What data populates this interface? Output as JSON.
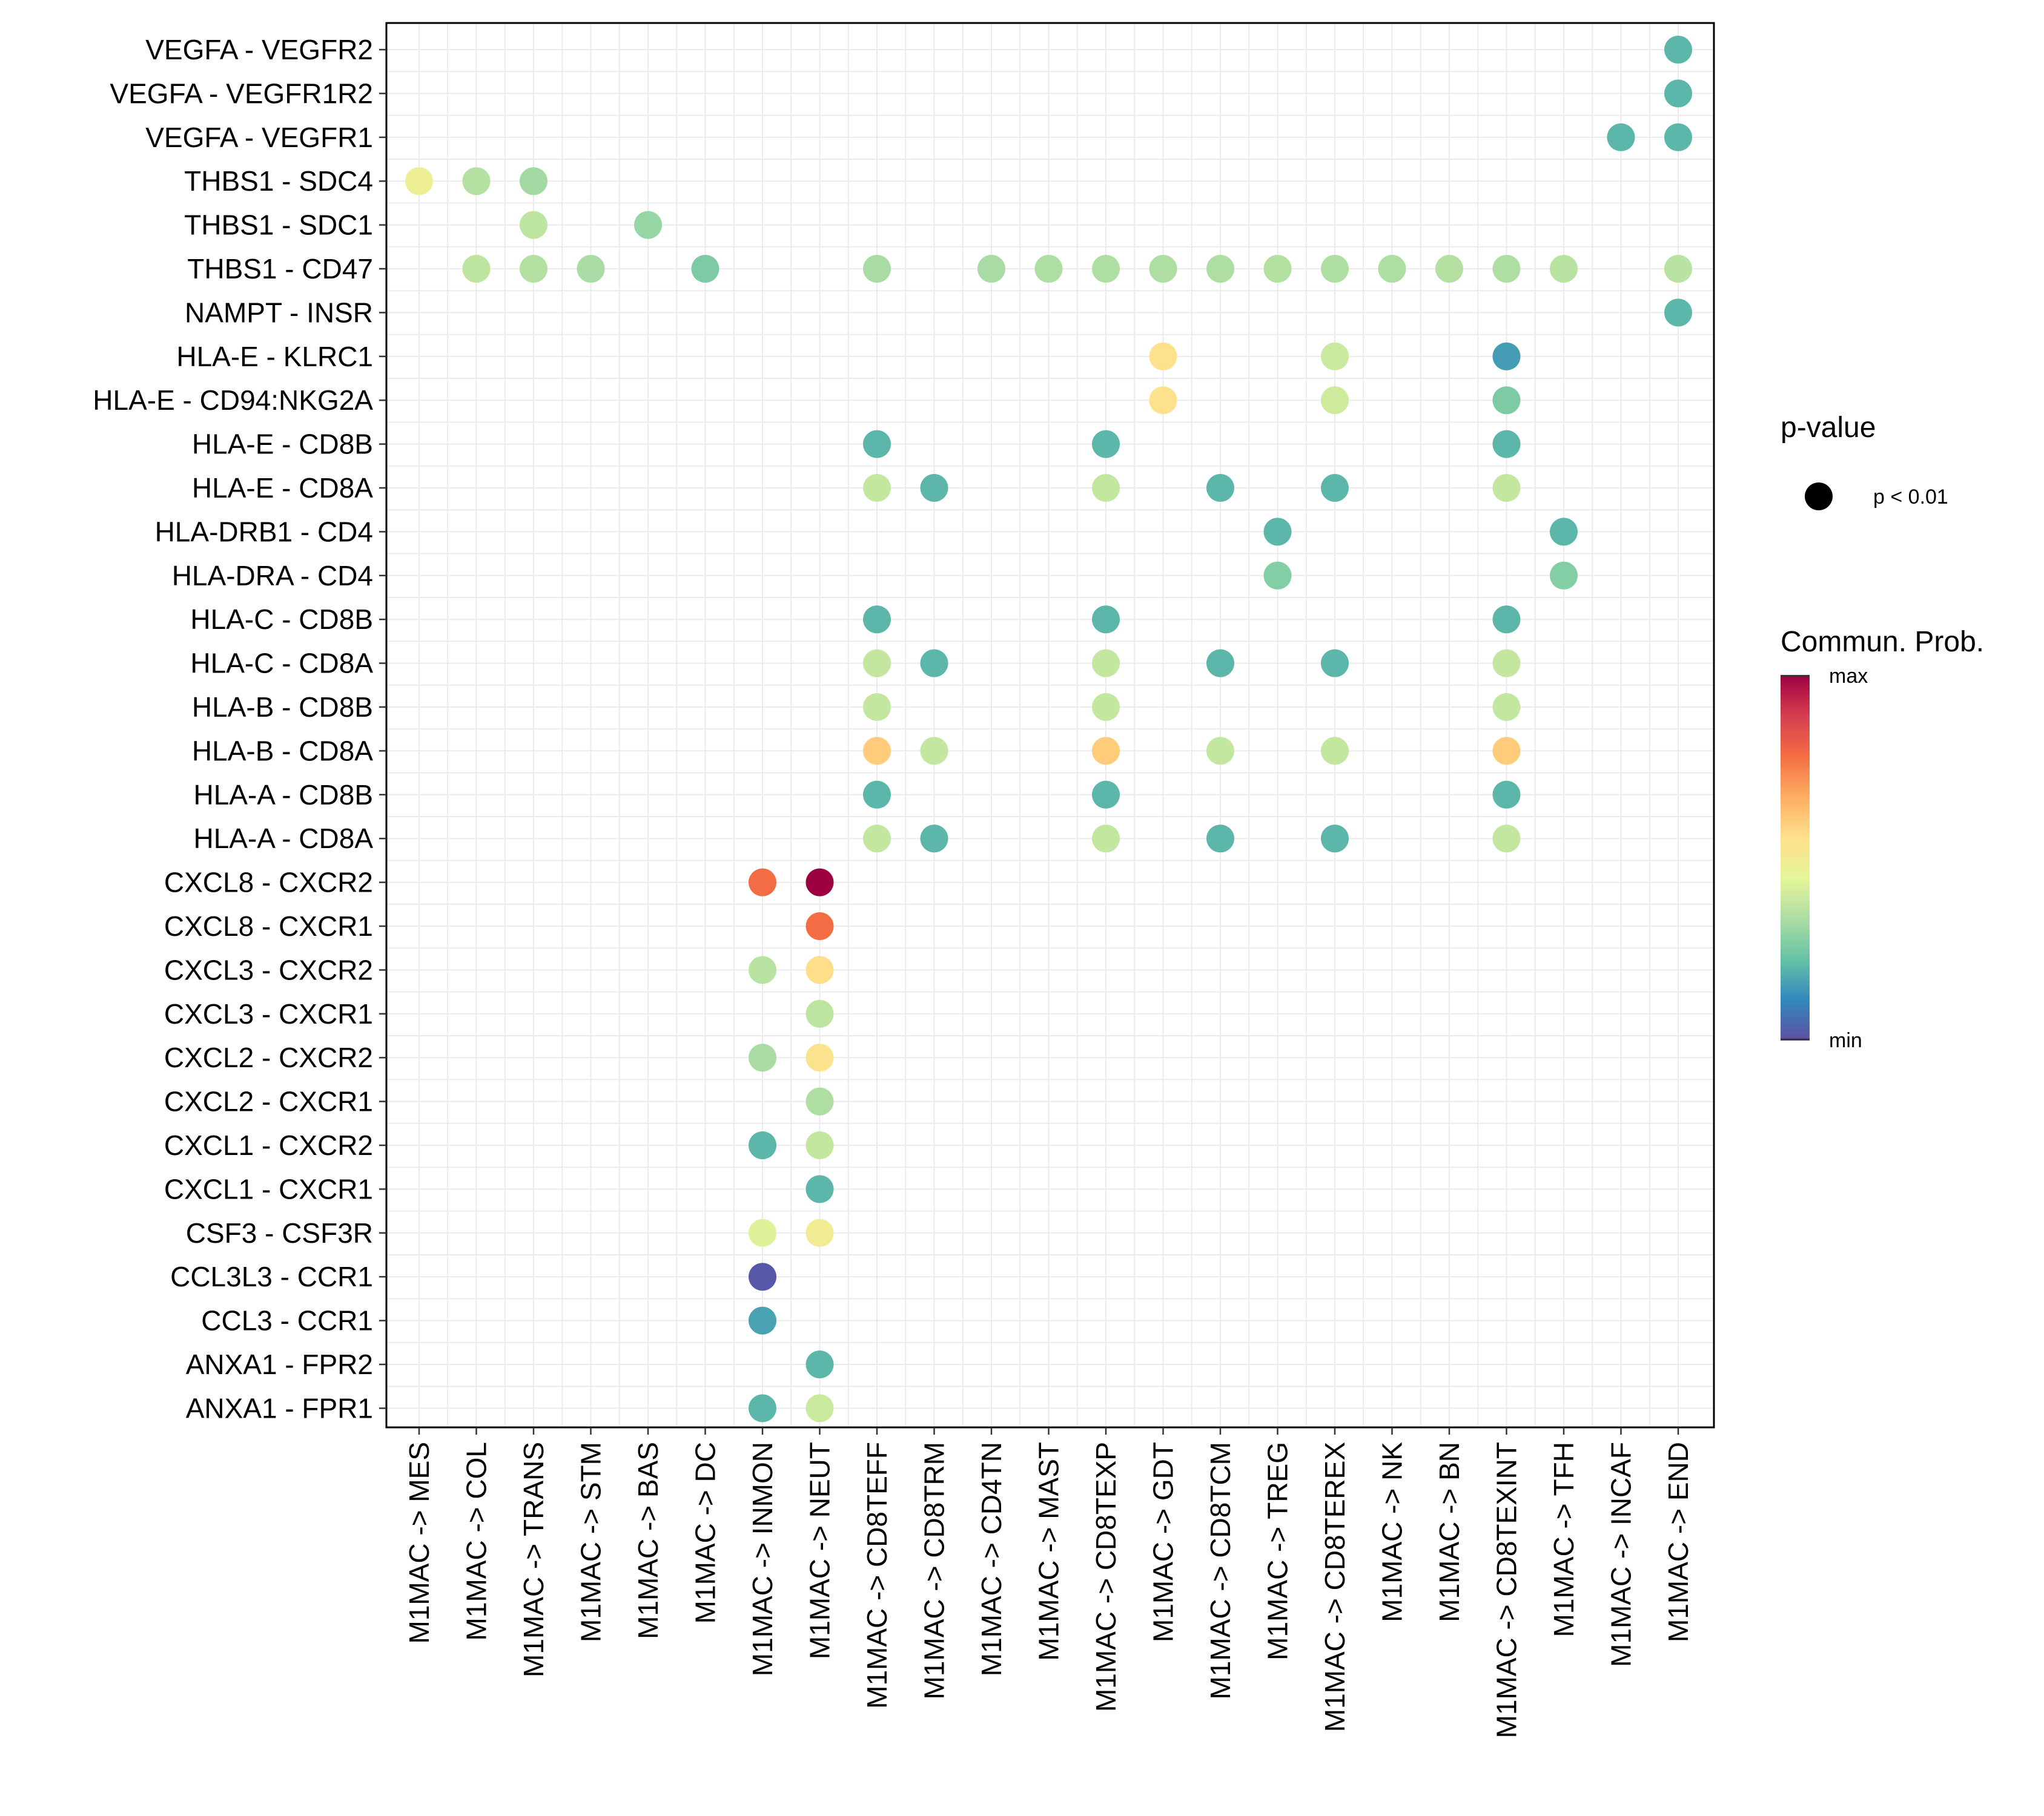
{
  "chart_data": {
    "type": "scatter",
    "subtype": "dot-plot",
    "x_categories": [
      "M1MAC -> MES",
      "M1MAC -> COL",
      "M1MAC -> TRANS",
      "M1MAC -> STM",
      "M1MAC -> BAS",
      "M1MAC -> DC",
      "M1MAC -> INMON",
      "M1MAC -> NEUT",
      "M1MAC -> CD8TEFF",
      "M1MAC -> CD8TRM",
      "M1MAC -> CD4TN",
      "M1MAC -> MAST",
      "M1MAC -> CD8TEXP",
      "M1MAC -> GDT",
      "M1MAC -> CD8TCM",
      "M1MAC -> TREG",
      "M1MAC -> CD8TEREX",
      "M1MAC -> NK",
      "M1MAC -> BN",
      "M1MAC -> CD8TEXINT",
      "M1MAC -> TFH",
      "M1MAC -> INCAF",
      "M1MAC -> END"
    ],
    "y_categories": [
      "VEGFA - VEGFR2",
      "VEGFA - VEGFR1R2",
      "VEGFA - VEGFR1",
      "THBS1 - SDC4",
      "THBS1 - SDC1",
      "THBS1 - CD47",
      "NAMPT - INSR",
      "HLA-E - KLRC1",
      "HLA-E - CD94:NKG2A",
      "HLA-E - CD8B",
      "HLA-E - CD8A",
      "HLA-DRB1 - CD4",
      "HLA-DRA - CD4",
      "HLA-C - CD8B",
      "HLA-C - CD8A",
      "HLA-B - CD8B",
      "HLA-B - CD8A",
      "HLA-A - CD8B",
      "HLA-A - CD8A",
      "CXCL8 - CXCR2",
      "CXCL8 - CXCR1",
      "CXCL3 - CXCR2",
      "CXCL3 - CXCR1",
      "CXCL2 - CXCR2",
      "CXCL2 - CXCR1",
      "CXCL1 - CXCR2",
      "CXCL1 - CXCR1",
      "CSF3 - CSF3R",
      "CCL3L3 - CCR1",
      "CCL3 - CCR1",
      "ANXA1 - FPR2",
      "ANXA1 - FPR1"
    ],
    "points": [
      {
        "x": "M1MAC -> END",
        "y": "VEGFA - VEGFR2",
        "prob": 0.2
      },
      {
        "x": "M1MAC -> END",
        "y": "VEGFA - VEGFR1R2",
        "prob": 0.2
      },
      {
        "x": "M1MAC -> INCAF",
        "y": "VEGFA - VEGFR1",
        "prob": 0.2
      },
      {
        "x": "M1MAC -> END",
        "y": "VEGFA - VEGFR1",
        "prob": 0.2
      },
      {
        "x": "M1MAC -> MES",
        "y": "THBS1 - SDC4",
        "prob": 0.48
      },
      {
        "x": "M1MAC -> COL",
        "y": "THBS1 - SDC4",
        "prob": 0.35
      },
      {
        "x": "M1MAC -> TRANS",
        "y": "THBS1 - SDC4",
        "prob": 0.32
      },
      {
        "x": "M1MAC -> TRANS",
        "y": "THBS1 - SDC1",
        "prob": 0.37
      },
      {
        "x": "M1MAC -> BAS",
        "y": "THBS1 - SDC1",
        "prob": 0.3
      },
      {
        "x": "M1MAC -> COL",
        "y": "THBS1 - CD47",
        "prob": 0.37
      },
      {
        "x": "M1MAC -> TRANS",
        "y": "THBS1 - CD47",
        "prob": 0.35
      },
      {
        "x": "M1MAC -> STM",
        "y": "THBS1 - CD47",
        "prob": 0.33
      },
      {
        "x": "M1MAC -> DC",
        "y": "THBS1 - CD47",
        "prob": 0.26
      },
      {
        "x": "M1MAC -> CD8TEFF",
        "y": "THBS1 - CD47",
        "prob": 0.33
      },
      {
        "x": "M1MAC -> CD4TN",
        "y": "THBS1 - CD47",
        "prob": 0.33
      },
      {
        "x": "M1MAC -> MAST",
        "y": "THBS1 - CD47",
        "prob": 0.34
      },
      {
        "x": "M1MAC -> CD8TEXP",
        "y": "THBS1 - CD47",
        "prob": 0.34
      },
      {
        "x": "M1MAC -> GDT",
        "y": "THBS1 - CD47",
        "prob": 0.34
      },
      {
        "x": "M1MAC -> CD8TCM",
        "y": "THBS1 - CD47",
        "prob": 0.34
      },
      {
        "x": "M1MAC -> TREG",
        "y": "THBS1 - CD47",
        "prob": 0.35
      },
      {
        "x": "M1MAC -> CD8TEREX",
        "y": "THBS1 - CD47",
        "prob": 0.34
      },
      {
        "x": "M1MAC -> NK",
        "y": "THBS1 - CD47",
        "prob": 0.34
      },
      {
        "x": "M1MAC -> BN",
        "y": "THBS1 - CD47",
        "prob": 0.35
      },
      {
        "x": "M1MAC -> CD8TEXINT",
        "y": "THBS1 - CD47",
        "prob": 0.34
      },
      {
        "x": "M1MAC -> TFH",
        "y": "THBS1 - CD47",
        "prob": 0.36
      },
      {
        "x": "M1MAC -> END",
        "y": "THBS1 - CD47",
        "prob": 0.36
      },
      {
        "x": "M1MAC -> END",
        "y": "NAMPT - INSR",
        "prob": 0.2
      },
      {
        "x": "M1MAC -> GDT",
        "y": "HLA-E - KLRC1",
        "prob": 0.55
      },
      {
        "x": "M1MAC -> CD8TEREX",
        "y": "HLA-E - KLRC1",
        "prob": 0.39
      },
      {
        "x": "M1MAC -> CD8TEXINT",
        "y": "HLA-E - KLRC1",
        "prob": 0.15
      },
      {
        "x": "M1MAC -> GDT",
        "y": "HLA-E - CD94:NKG2A",
        "prob": 0.55
      },
      {
        "x": "M1MAC -> CD8TEREX",
        "y": "HLA-E - CD94:NKG2A",
        "prob": 0.4
      },
      {
        "x": "M1MAC -> CD8TEXINT",
        "y": "HLA-E - CD94:NKG2A",
        "prob": 0.26
      },
      {
        "x": "M1MAC -> CD8TEFF",
        "y": "HLA-E - CD8B",
        "prob": 0.2
      },
      {
        "x": "M1MAC -> CD8TEXP",
        "y": "HLA-E - CD8B",
        "prob": 0.2
      },
      {
        "x": "M1MAC -> CD8TEXINT",
        "y": "HLA-E - CD8B",
        "prob": 0.2
      },
      {
        "x": "M1MAC -> CD8TEFF",
        "y": "HLA-E - CD8A",
        "prob": 0.38
      },
      {
        "x": "M1MAC -> CD8TRM",
        "y": "HLA-E - CD8A",
        "prob": 0.2
      },
      {
        "x": "M1MAC -> CD8TEXP",
        "y": "HLA-E - CD8A",
        "prob": 0.38
      },
      {
        "x": "M1MAC -> CD8TCM",
        "y": "HLA-E - CD8A",
        "prob": 0.2
      },
      {
        "x": "M1MAC -> CD8TEREX",
        "y": "HLA-E - CD8A",
        "prob": 0.2
      },
      {
        "x": "M1MAC -> CD8TEXINT",
        "y": "HLA-E - CD8A",
        "prob": 0.38
      },
      {
        "x": "M1MAC -> TREG",
        "y": "HLA-DRB1 - CD4",
        "prob": 0.2
      },
      {
        "x": "M1MAC -> TFH",
        "y": "HLA-DRB1 - CD4",
        "prob": 0.2
      },
      {
        "x": "M1MAC -> TREG",
        "y": "HLA-DRA - CD4",
        "prob": 0.27
      },
      {
        "x": "M1MAC -> TFH",
        "y": "HLA-DRA - CD4",
        "prob": 0.27
      },
      {
        "x": "M1MAC -> CD8TEFF",
        "y": "HLA-C - CD8B",
        "prob": 0.2
      },
      {
        "x": "M1MAC -> CD8TEXP",
        "y": "HLA-C - CD8B",
        "prob": 0.2
      },
      {
        "x": "M1MAC -> CD8TEXINT",
        "y": "HLA-C - CD8B",
        "prob": 0.2
      },
      {
        "x": "M1MAC -> CD8TEFF",
        "y": "HLA-C - CD8A",
        "prob": 0.38
      },
      {
        "x": "M1MAC -> CD8TRM",
        "y": "HLA-C - CD8A",
        "prob": 0.2
      },
      {
        "x": "M1MAC -> CD8TEXP",
        "y": "HLA-C - CD8A",
        "prob": 0.38
      },
      {
        "x": "M1MAC -> CD8TCM",
        "y": "HLA-C - CD8A",
        "prob": 0.2
      },
      {
        "x": "M1MAC -> CD8TEREX",
        "y": "HLA-C - CD8A",
        "prob": 0.2
      },
      {
        "x": "M1MAC -> CD8TEXINT",
        "y": "HLA-C - CD8A",
        "prob": 0.38
      },
      {
        "x": "M1MAC -> CD8TEFF",
        "y": "HLA-B - CD8B",
        "prob": 0.38
      },
      {
        "x": "M1MAC -> CD8TEXP",
        "y": "HLA-B - CD8B",
        "prob": 0.38
      },
      {
        "x": "M1MAC -> CD8TEXINT",
        "y": "HLA-B - CD8B",
        "prob": 0.38
      },
      {
        "x": "M1MAC -> CD8TEFF",
        "y": "HLA-B - CD8A",
        "prob": 0.6
      },
      {
        "x": "M1MAC -> CD8TRM",
        "y": "HLA-B - CD8A",
        "prob": 0.38
      },
      {
        "x": "M1MAC -> CD8TEXP",
        "y": "HLA-B - CD8A",
        "prob": 0.6
      },
      {
        "x": "M1MAC -> CD8TCM",
        "y": "HLA-B - CD8A",
        "prob": 0.38
      },
      {
        "x": "M1MAC -> CD8TEREX",
        "y": "HLA-B - CD8A",
        "prob": 0.38
      },
      {
        "x": "M1MAC -> CD8TEXINT",
        "y": "HLA-B - CD8A",
        "prob": 0.6
      },
      {
        "x": "M1MAC -> CD8TEFF",
        "y": "HLA-A - CD8B",
        "prob": 0.2
      },
      {
        "x": "M1MAC -> CD8TEXP",
        "y": "HLA-A - CD8B",
        "prob": 0.2
      },
      {
        "x": "M1MAC -> CD8TEXINT",
        "y": "HLA-A - CD8B",
        "prob": 0.2
      },
      {
        "x": "M1MAC -> CD8TEFF",
        "y": "HLA-A - CD8A",
        "prob": 0.38
      },
      {
        "x": "M1MAC -> CD8TRM",
        "y": "HLA-A - CD8A",
        "prob": 0.2
      },
      {
        "x": "M1MAC -> CD8TEXP",
        "y": "HLA-A - CD8A",
        "prob": 0.38
      },
      {
        "x": "M1MAC -> CD8TCM",
        "y": "HLA-A - CD8A",
        "prob": 0.2
      },
      {
        "x": "M1MAC -> CD8TEREX",
        "y": "HLA-A - CD8A",
        "prob": 0.2
      },
      {
        "x": "M1MAC -> CD8TEXINT",
        "y": "HLA-A - CD8A",
        "prob": 0.38
      },
      {
        "x": "M1MAC -> INMON",
        "y": "CXCL8 - CXCR2",
        "prob": 0.78
      },
      {
        "x": "M1MAC -> NEUT",
        "y": "CXCL8 - CXCR2",
        "prob": 1.0
      },
      {
        "x": "M1MAC -> NEUT",
        "y": "CXCL8 - CXCR1",
        "prob": 0.78
      },
      {
        "x": "M1MAC -> INMON",
        "y": "CXCL3 - CXCR2",
        "prob": 0.36
      },
      {
        "x": "M1MAC -> NEUT",
        "y": "CXCL3 - CXCR2",
        "prob": 0.56
      },
      {
        "x": "M1MAC -> NEUT",
        "y": "CXCL3 - CXCR1",
        "prob": 0.37
      },
      {
        "x": "M1MAC -> INMON",
        "y": "CXCL2 - CXCR2",
        "prob": 0.33
      },
      {
        "x": "M1MAC -> NEUT",
        "y": "CXCL2 - CXCR2",
        "prob": 0.54
      },
      {
        "x": "M1MAC -> NEUT",
        "y": "CXCL2 - CXCR1",
        "prob": 0.34
      },
      {
        "x": "M1MAC -> INMON",
        "y": "CXCL1 - CXCR2",
        "prob": 0.2
      },
      {
        "x": "M1MAC -> NEUT",
        "y": "CXCL1 - CXCR2",
        "prob": 0.38
      },
      {
        "x": "M1MAC -> NEUT",
        "y": "CXCL1 - CXCR1",
        "prob": 0.2
      },
      {
        "x": "M1MAC -> INMON",
        "y": "CSF3 - CSF3R",
        "prob": 0.43
      },
      {
        "x": "M1MAC -> NEUT",
        "y": "CSF3 - CSF3R",
        "prob": 0.49
      },
      {
        "x": "M1MAC -> INMON",
        "y": "CCL3L3 - CCR1",
        "prob": 0.02
      },
      {
        "x": "M1MAC -> INMON",
        "y": "CCL3 - CCR1",
        "prob": 0.16
      },
      {
        "x": "M1MAC -> NEUT",
        "y": "ANXA1 - FPR2",
        "prob": 0.2
      },
      {
        "x": "M1MAC -> INMON",
        "y": "ANXA1 - FPR1",
        "prob": 0.2
      },
      {
        "x": "M1MAC -> NEUT",
        "y": "ANXA1 - FPR1",
        "prob": 0.39
      }
    ],
    "legend": {
      "pvalue_title": "p-value",
      "pvalue_label": "p < 0.01",
      "color_title": "Commun. Prob.",
      "color_max": "max",
      "color_min": "min",
      "colors": [
        "#5E4FA2",
        "#3288BD",
        "#66C2A5",
        "#ABDDA4",
        "#E6F598",
        "#FEE08B",
        "#FDAE61",
        "#F46D43",
        "#D53E4F",
        "#9E0142"
      ]
    }
  }
}
